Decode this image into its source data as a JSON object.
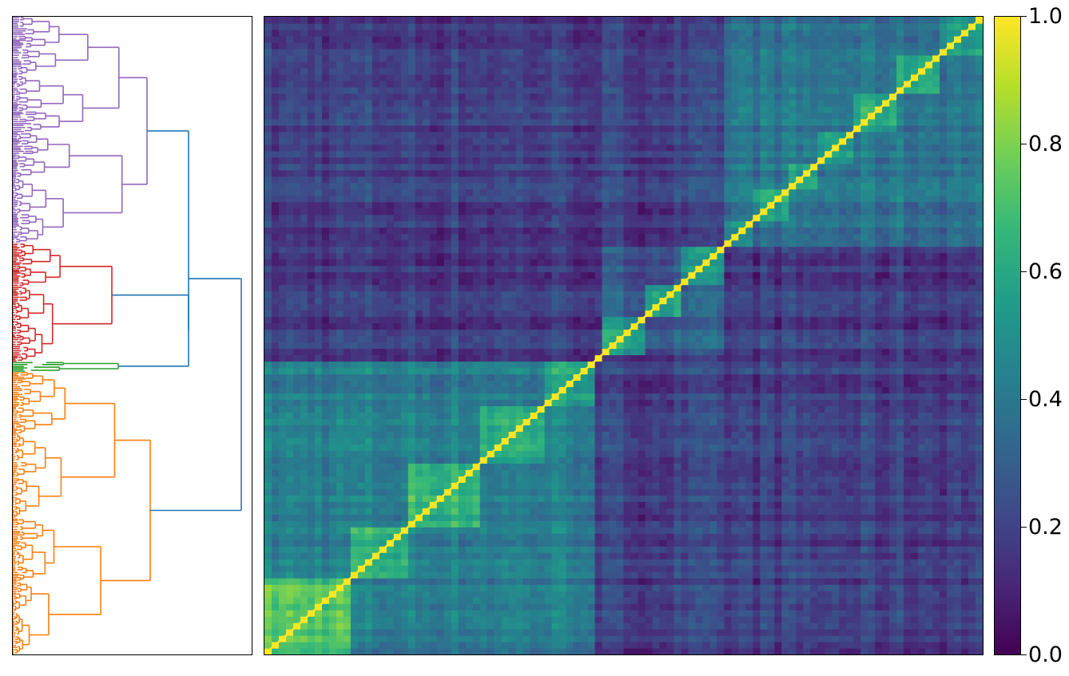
{
  "chart_data": {
    "type": "heatmap",
    "title": "",
    "xlabel": "",
    "ylabel": "",
    "description_of_layout": "clustered similarity matrix with row dendrogram on the left and colorbar on the right",
    "colormap": "viridis",
    "colors": {
      "viridis_stops": [
        "#440154",
        "#482878",
        "#3e4a89",
        "#31688e",
        "#26828e",
        "#1f9e89",
        "#35b779",
        "#6ece58",
        "#b5de2b",
        "#fde725"
      ],
      "dendrogram": {
        "cluster_1": "#9467bd",
        "cluster_2": "#d62728",
        "cluster_3": "#2ca02c",
        "cluster_4": "#ff7f0e",
        "root": "#1f77b4"
      }
    },
    "colorbar": {
      "range": [
        0.0,
        1.0
      ],
      "ticks": [
        0.0,
        0.2,
        0.4,
        0.6,
        0.8,
        1.0
      ],
      "tick_labels": [
        "0.0",
        "0.2",
        "0.4",
        "0.6",
        "0.8",
        "1.0"
      ]
    },
    "diagonal_value": 1.0,
    "clusters": [
      {
        "color": "cluster_1",
        "share": 0.355
      },
      {
        "color": "cluster_2",
        "share": 0.186
      },
      {
        "color": "cluster_3",
        "share": 0.016
      },
      {
        "color": "cluster_4",
        "share": 0.443
      }
    ],
    "blocks": [
      {
        "from": 0.0,
        "to": 0.12,
        "value": 0.72
      },
      {
        "from": 0.12,
        "to": 0.2,
        "value": 0.62
      },
      {
        "from": 0.2,
        "to": 0.3,
        "value": 0.66
      },
      {
        "from": 0.3,
        "to": 0.39,
        "value": 0.6
      },
      {
        "from": 0.39,
        "to": 0.457,
        "value": 0.58
      },
      {
        "from": 0.457,
        "to": 0.475,
        "value": 0.3
      },
      {
        "from": 0.475,
        "to": 0.53,
        "value": 0.55
      },
      {
        "from": 0.53,
        "to": 0.58,
        "value": 0.56
      },
      {
        "from": 0.58,
        "to": 0.64,
        "value": 0.52
      },
      {
        "from": 0.64,
        "to": 0.68,
        "value": 0.5
      },
      {
        "from": 0.68,
        "to": 0.73,
        "value": 0.58
      },
      {
        "from": 0.73,
        "to": 0.77,
        "value": 0.56
      },
      {
        "from": 0.77,
        "to": 0.82,
        "value": 0.55
      },
      {
        "from": 0.82,
        "to": 0.88,
        "value": 0.58
      },
      {
        "from": 0.88,
        "to": 0.94,
        "value": 0.6
      },
      {
        "from": 0.94,
        "to": 1.0,
        "value": 0.56
      }
    ],
    "superblocks": [
      {
        "from": 0.0,
        "to": 0.457,
        "value": 0.42
      },
      {
        "from": 0.457,
        "to": 0.475,
        "value": 0.12
      },
      {
        "from": 0.475,
        "to": 0.645,
        "value": 0.28
      },
      {
        "from": 0.645,
        "to": 1.0,
        "value": 0.38
      }
    ],
    "background_value": 0.18
  }
}
